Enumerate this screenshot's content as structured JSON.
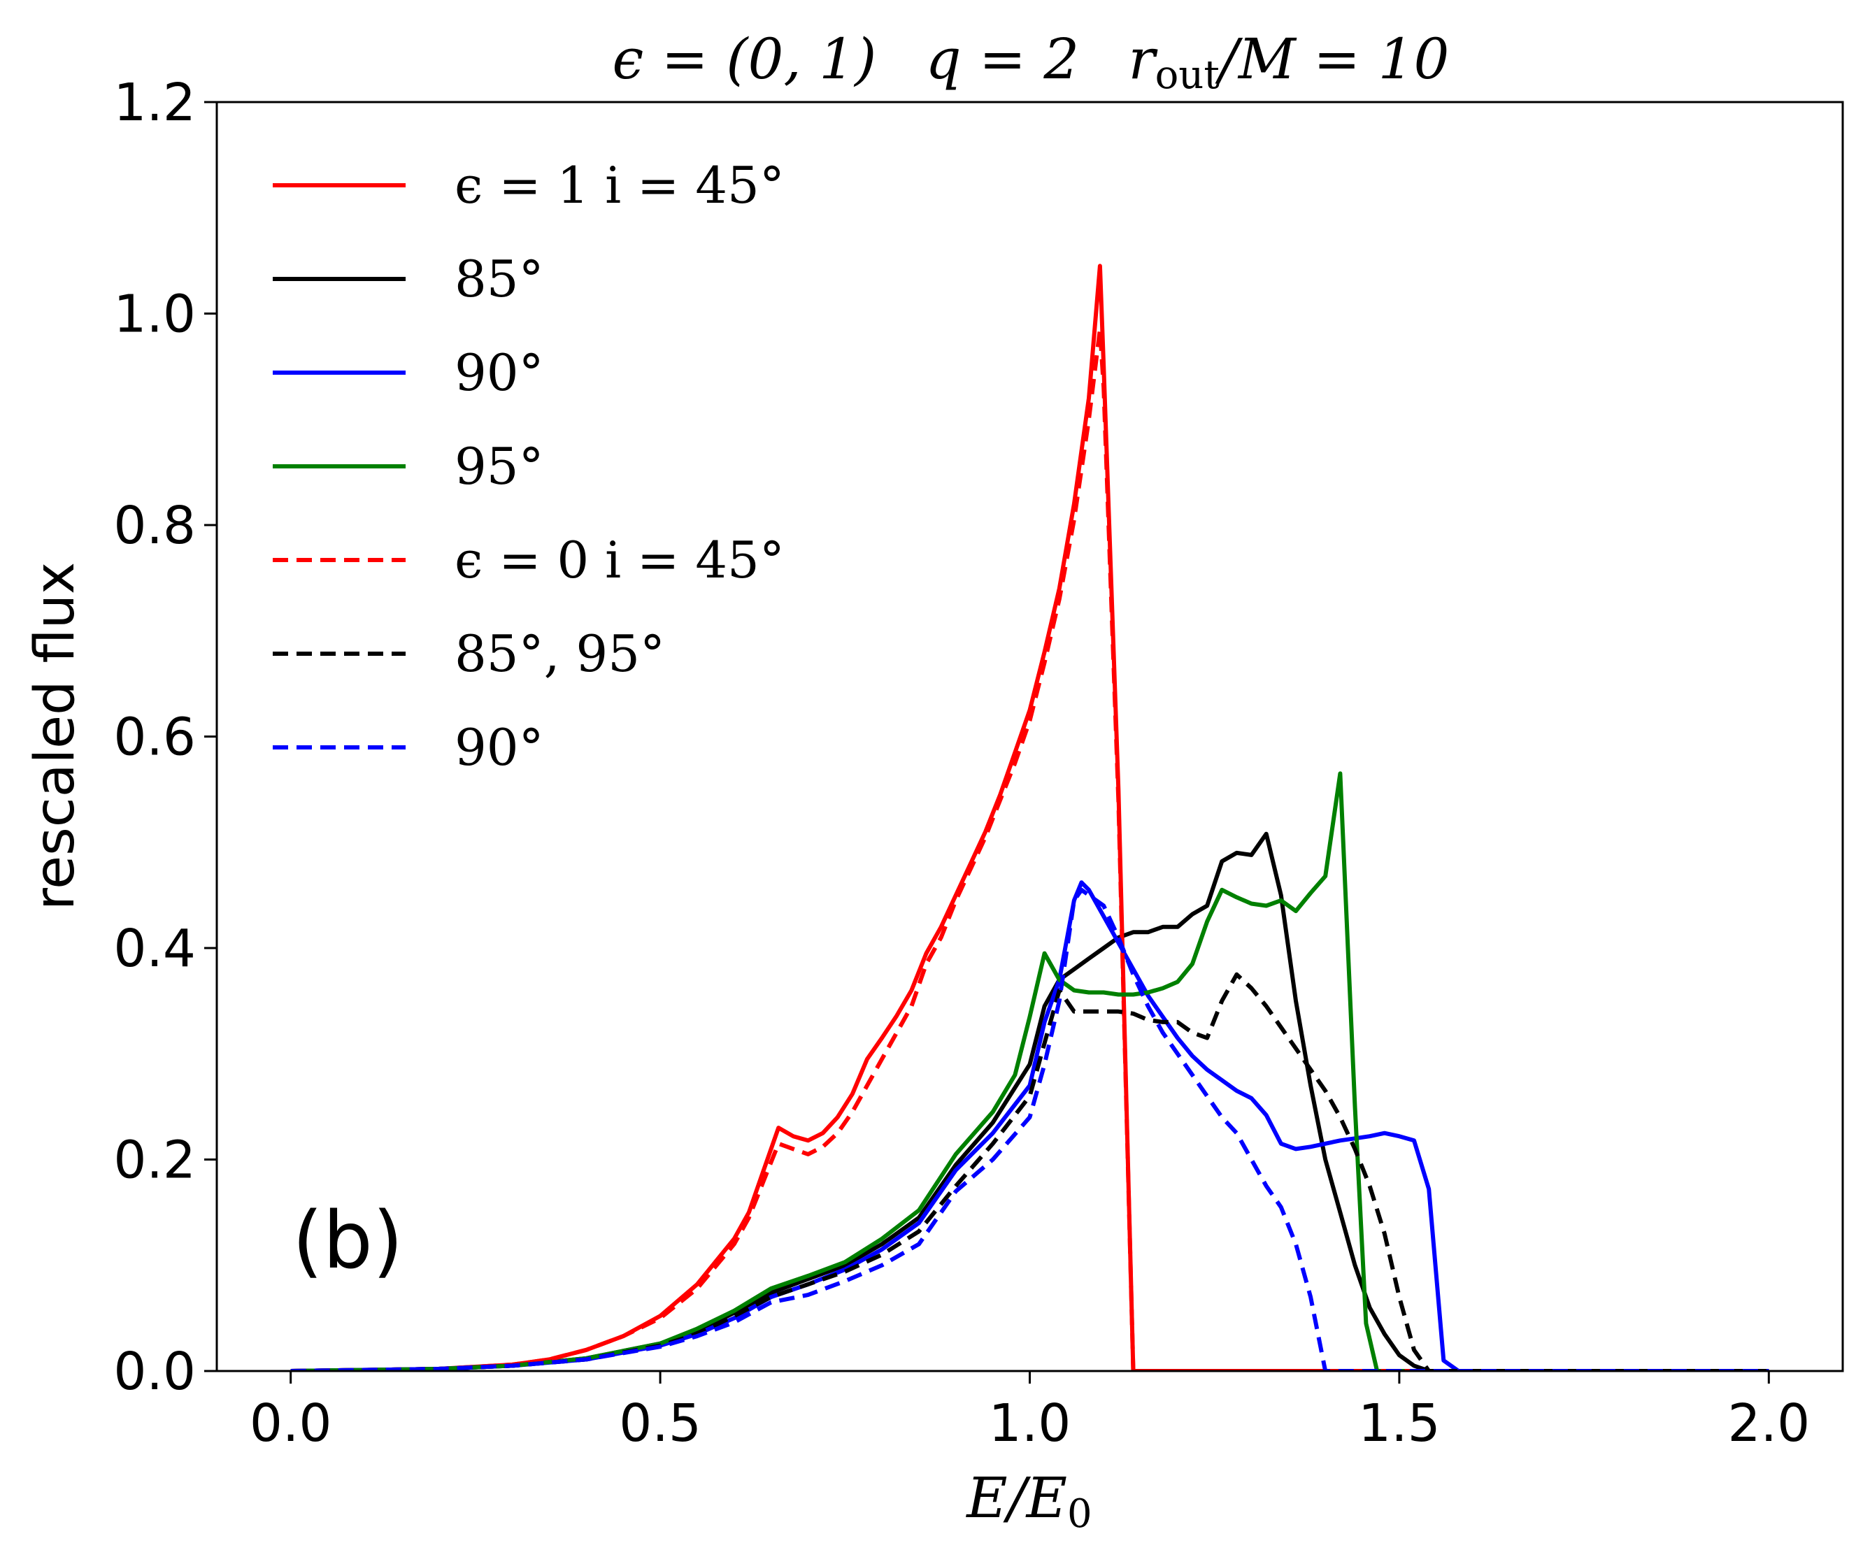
{
  "chart_data": {
    "type": "line",
    "title": "ϵ = (0,  1)    q = 2    r_out/M = 10",
    "title_parts": {
      "eps": "ϵ = (0,  1)",
      "q": "q = 2",
      "r": "r",
      "r_sub": "out",
      "r_rest": "/M = 10"
    },
    "xlabel": "E/E",
    "xlabel_sub": "0",
    "ylabel": "rescaled flux",
    "panel_label": "(b)",
    "xlim": [
      -0.1,
      2.1
    ],
    "ylim": [
      0.0,
      1.2
    ],
    "xticks": [
      "0.0",
      "0.5",
      "1.0",
      "1.5",
      "2.0"
    ],
    "yticks": [
      "0.0",
      "0.2",
      "0.4",
      "0.6",
      "0.8",
      "1.0",
      "1.2"
    ],
    "grid": false,
    "legend_position": "upper-left",
    "series": [
      {
        "name": "ϵ = 1   i = 45°",
        "color": "#ff0000",
        "dash": "solid",
        "x": [
          0.0,
          0.2,
          0.3,
          0.35,
          0.4,
          0.45,
          0.5,
          0.55,
          0.6,
          0.62,
          0.64,
          0.66,
          0.68,
          0.7,
          0.72,
          0.74,
          0.76,
          0.78,
          0.8,
          0.82,
          0.84,
          0.86,
          0.88,
          0.9,
          0.92,
          0.94,
          0.96,
          0.98,
          1.0,
          1.02,
          1.04,
          1.06,
          1.08,
          1.095,
          1.1,
          1.12,
          1.14,
          1.3,
          1.5,
          2.0
        ],
        "y": [
          0.0,
          0.002,
          0.006,
          0.011,
          0.02,
          0.033,
          0.052,
          0.082,
          0.125,
          0.15,
          0.19,
          0.23,
          0.222,
          0.218,
          0.225,
          0.24,
          0.262,
          0.295,
          0.315,
          0.336,
          0.36,
          0.395,
          0.42,
          0.45,
          0.48,
          0.51,
          0.545,
          0.585,
          0.625,
          0.68,
          0.74,
          0.82,
          0.92,
          1.045,
          0.95,
          0.55,
          0.0,
          0.0,
          0.0,
          0.0
        ]
      },
      {
        "name": "85°",
        "color": "#000000",
        "dash": "solid",
        "x": [
          0.0,
          0.2,
          0.3,
          0.4,
          0.5,
          0.55,
          0.6,
          0.65,
          0.7,
          0.75,
          0.8,
          0.85,
          0.9,
          0.95,
          1.0,
          1.02,
          1.04,
          1.06,
          1.08,
          1.1,
          1.12,
          1.14,
          1.16,
          1.18,
          1.2,
          1.22,
          1.24,
          1.26,
          1.28,
          1.3,
          1.32,
          1.34,
          1.36,
          1.38,
          1.4,
          1.42,
          1.44,
          1.46,
          1.48,
          1.5,
          1.52,
          1.54,
          1.56,
          1.6,
          2.0
        ],
        "y": [
          0.0,
          0.002,
          0.005,
          0.012,
          0.026,
          0.038,
          0.055,
          0.074,
          0.087,
          0.1,
          0.12,
          0.145,
          0.195,
          0.235,
          0.29,
          0.345,
          0.37,
          0.38,
          0.39,
          0.4,
          0.41,
          0.415,
          0.415,
          0.42,
          0.42,
          0.432,
          0.44,
          0.482,
          0.49,
          0.488,
          0.508,
          0.45,
          0.35,
          0.27,
          0.2,
          0.15,
          0.1,
          0.06,
          0.035,
          0.015,
          0.005,
          0.0,
          0.0,
          0.0,
          0.0
        ]
      },
      {
        "name": "90°",
        "color": "#0000ff",
        "dash": "solid",
        "x": [
          0.0,
          0.2,
          0.3,
          0.4,
          0.5,
          0.55,
          0.6,
          0.65,
          0.7,
          0.75,
          0.8,
          0.85,
          0.9,
          0.95,
          1.0,
          1.02,
          1.04,
          1.06,
          1.07,
          1.08,
          1.1,
          1.12,
          1.14,
          1.16,
          1.18,
          1.2,
          1.22,
          1.24,
          1.26,
          1.28,
          1.3,
          1.32,
          1.34,
          1.36,
          1.38,
          1.4,
          1.42,
          1.44,
          1.46,
          1.48,
          1.5,
          1.52,
          1.54,
          1.56,
          1.58,
          1.6,
          2.0
        ],
        "y": [
          0.0,
          0.002,
          0.005,
          0.011,
          0.024,
          0.035,
          0.05,
          0.07,
          0.082,
          0.096,
          0.115,
          0.14,
          0.19,
          0.225,
          0.27,
          0.33,
          0.37,
          0.445,
          0.462,
          0.455,
          0.43,
          0.405,
          0.38,
          0.355,
          0.335,
          0.315,
          0.298,
          0.285,
          0.275,
          0.265,
          0.258,
          0.242,
          0.215,
          0.21,
          0.212,
          0.215,
          0.218,
          0.22,
          0.222,
          0.225,
          0.222,
          0.218,
          0.172,
          0.01,
          0.0,
          0.0,
          0.0
        ]
      },
      {
        "name": "95°",
        "color": "#008000",
        "dash": "solid",
        "x": [
          0.0,
          0.2,
          0.3,
          0.4,
          0.5,
          0.55,
          0.6,
          0.65,
          0.7,
          0.75,
          0.8,
          0.85,
          0.9,
          0.95,
          0.98,
          1.0,
          1.02,
          1.04,
          1.06,
          1.08,
          1.1,
          1.12,
          1.14,
          1.16,
          1.18,
          1.2,
          1.22,
          1.24,
          1.26,
          1.28,
          1.3,
          1.32,
          1.34,
          1.36,
          1.38,
          1.4,
          1.42,
          1.44,
          1.455,
          1.47,
          1.49,
          1.5,
          2.0
        ],
        "y": [
          0.0,
          0.002,
          0.005,
          0.012,
          0.026,
          0.04,
          0.057,
          0.078,
          0.09,
          0.103,
          0.125,
          0.152,
          0.205,
          0.245,
          0.28,
          0.335,
          0.395,
          0.37,
          0.36,
          0.358,
          0.358,
          0.356,
          0.356,
          0.358,
          0.362,
          0.368,
          0.385,
          0.425,
          0.455,
          0.448,
          0.442,
          0.44,
          0.445,
          0.435,
          0.452,
          0.468,
          0.565,
          0.25,
          0.045,
          0.0,
          0.0,
          0.0,
          0.0
        ]
      },
      {
        "name": "ϵ = 0   i = 45°",
        "color": "#ff0000",
        "dash": "dashed",
        "x": [
          0.0,
          0.2,
          0.3,
          0.35,
          0.4,
          0.45,
          0.5,
          0.55,
          0.6,
          0.62,
          0.64,
          0.66,
          0.68,
          0.7,
          0.72,
          0.74,
          0.76,
          0.78,
          0.8,
          0.82,
          0.84,
          0.86,
          0.88,
          0.9,
          0.92,
          0.94,
          0.96,
          0.98,
          1.0,
          1.02,
          1.04,
          1.06,
          1.08,
          1.095,
          1.1,
          1.12,
          1.14,
          1.3,
          1.5,
          2.0
        ],
        "y": [
          0.0,
          0.002,
          0.006,
          0.011,
          0.02,
          0.033,
          0.05,
          0.078,
          0.12,
          0.145,
          0.18,
          0.215,
          0.21,
          0.205,
          0.212,
          0.225,
          0.245,
          0.27,
          0.295,
          0.32,
          0.345,
          0.385,
          0.41,
          0.445,
          0.475,
          0.505,
          0.54,
          0.575,
          0.615,
          0.67,
          0.73,
          0.805,
          0.9,
          0.985,
          0.93,
          0.54,
          0.0,
          0.0,
          0.0,
          0.0
        ]
      },
      {
        "name": "85°,  95°",
        "color": "#000000",
        "dash": "dashed",
        "x": [
          0.0,
          0.2,
          0.3,
          0.4,
          0.5,
          0.55,
          0.6,
          0.65,
          0.7,
          0.75,
          0.8,
          0.85,
          0.9,
          0.95,
          1.0,
          1.02,
          1.04,
          1.06,
          1.08,
          1.1,
          1.12,
          1.14,
          1.16,
          1.18,
          1.2,
          1.22,
          1.24,
          1.26,
          1.28,
          1.3,
          1.32,
          1.34,
          1.36,
          1.38,
          1.4,
          1.42,
          1.44,
          1.46,
          1.48,
          1.5,
          1.52,
          1.54,
          1.56,
          2.0
        ],
        "y": [
          0.0,
          0.002,
          0.005,
          0.011,
          0.024,
          0.035,
          0.052,
          0.07,
          0.082,
          0.094,
          0.11,
          0.132,
          0.175,
          0.215,
          0.26,
          0.31,
          0.36,
          0.34,
          0.34,
          0.34,
          0.34,
          0.338,
          0.332,
          0.33,
          0.33,
          0.32,
          0.315,
          0.35,
          0.375,
          0.362,
          0.345,
          0.325,
          0.305,
          0.285,
          0.265,
          0.24,
          0.21,
          0.175,
          0.13,
          0.07,
          0.02,
          0.0,
          0.0,
          0.0
        ]
      },
      {
        "name": "90°",
        "color": "#0000ff",
        "dash": "dashed",
        "x": [
          0.0,
          0.2,
          0.3,
          0.4,
          0.5,
          0.55,
          0.6,
          0.65,
          0.7,
          0.75,
          0.8,
          0.85,
          0.9,
          0.95,
          1.0,
          1.02,
          1.04,
          1.06,
          1.07,
          1.08,
          1.1,
          1.12,
          1.14,
          1.16,
          1.18,
          1.2,
          1.22,
          1.24,
          1.26,
          1.28,
          1.3,
          1.32,
          1.34,
          1.36,
          1.38,
          1.4,
          1.42,
          1.44,
          2.0
        ],
        "y": [
          0.0,
          0.002,
          0.005,
          0.011,
          0.023,
          0.033,
          0.046,
          0.065,
          0.072,
          0.085,
          0.1,
          0.12,
          0.17,
          0.2,
          0.24,
          0.29,
          0.35,
          0.445,
          0.455,
          0.45,
          0.44,
          0.41,
          0.375,
          0.345,
          0.32,
          0.3,
          0.28,
          0.26,
          0.24,
          0.225,
          0.2,
          0.175,
          0.155,
          0.12,
          0.07,
          0.0,
          0.0,
          0.0,
          0.0
        ]
      }
    ]
  }
}
